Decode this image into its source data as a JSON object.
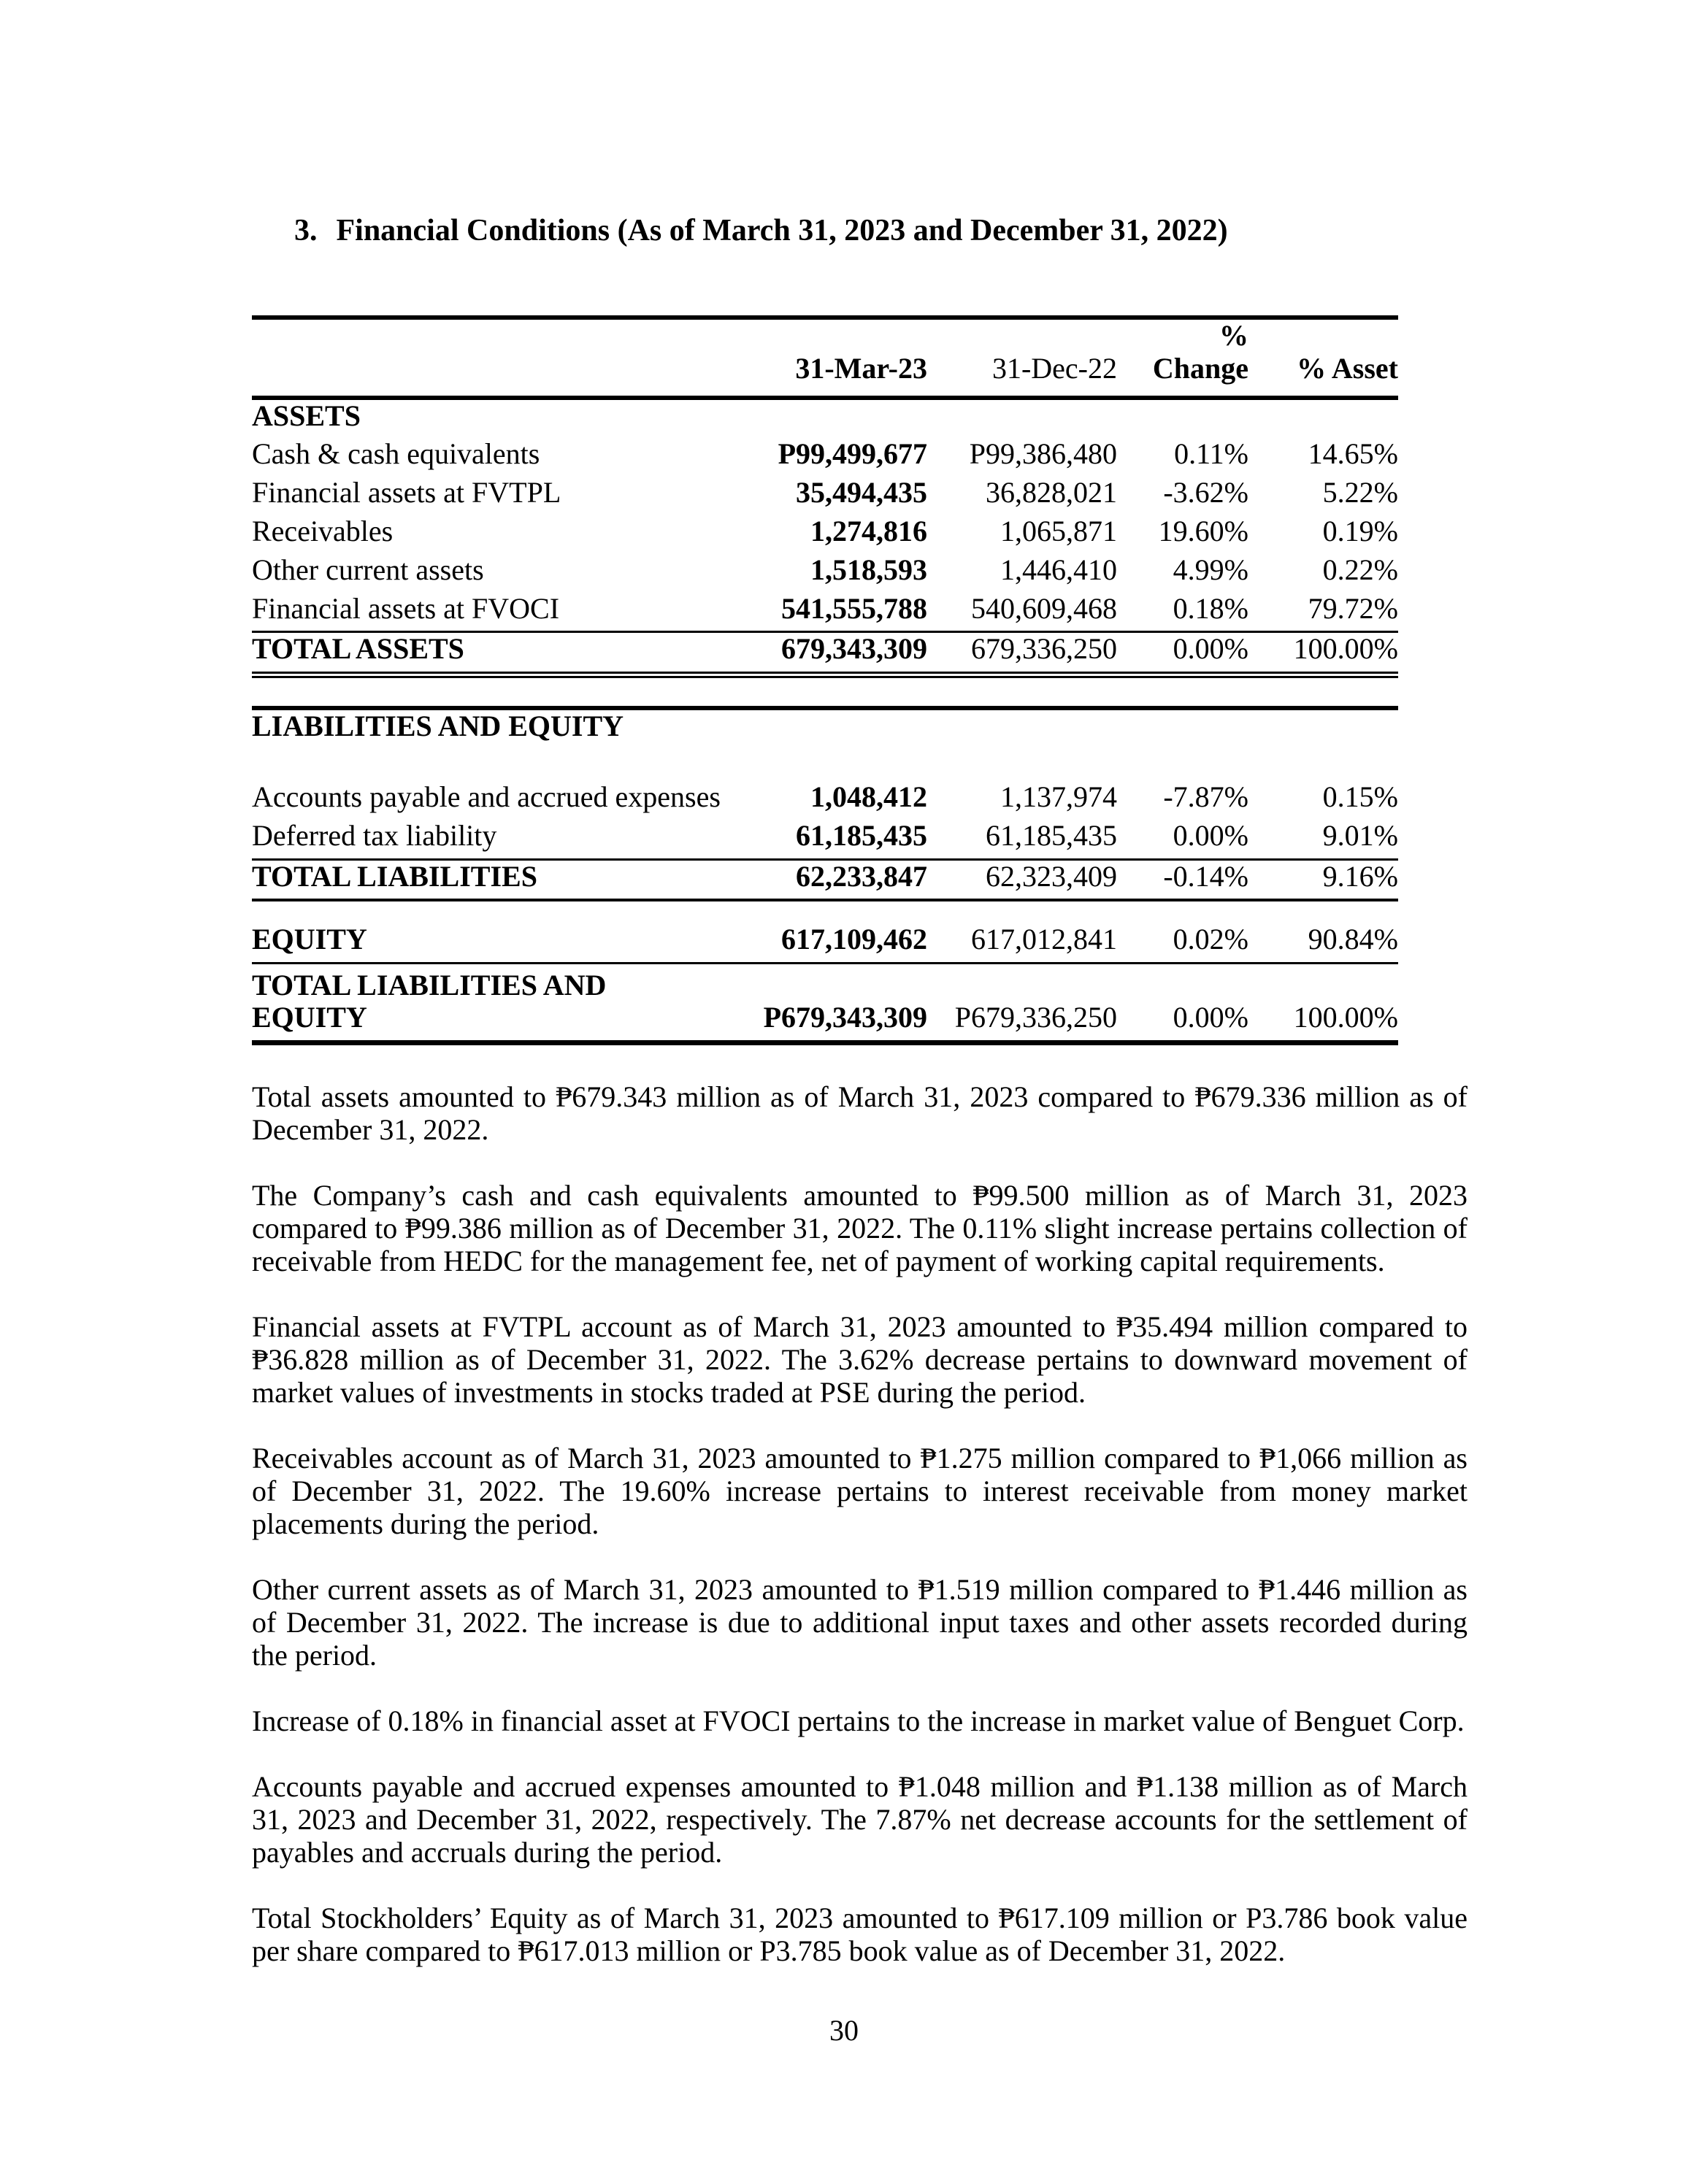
{
  "document": {
    "title_number": "3.",
    "title": "Financial Conditions (As of March 31, 2023 and December 31, 2022)",
    "page_number": "30"
  },
  "table": {
    "columns": [
      "31-Mar-23",
      "31-Dec-22",
      "% Change",
      "% Asset"
    ],
    "rows": [
      {
        "label": "ASSETS",
        "v1": "",
        "v2": "",
        "chg": "",
        "asset": ""
      },
      {
        "label": "Cash & cash equivalents",
        "v1": "P99,499,677",
        "v2": "P99,386,480",
        "chg": "0.11%",
        "asset": "14.65%"
      },
      {
        "label": "Financial assets at FVTPL",
        "v1": "35,494,435",
        "v2": "36,828,021",
        "chg": "-3.62%",
        "asset": "5.22%"
      },
      {
        "label": "Receivables",
        "v1": "1,274,816",
        "v2": "1,065,871",
        "chg": "19.60%",
        "asset": "0.19%"
      },
      {
        "label": "Other current assets",
        "v1": "1,518,593",
        "v2": "1,446,410",
        "chg": "4.99%",
        "asset": "0.22%"
      },
      {
        "label": "Financial assets at FVOCI",
        "v1": "541,555,788",
        "v2": "540,609,468",
        "chg": "0.18%",
        "asset": "79.72%"
      },
      {
        "label": "TOTAL ASSETS",
        "v1": "679,343,309",
        "v2": "679,336,250",
        "chg": "0.00%",
        "asset": "100.00%"
      },
      {
        "label": "LIABILITIES AND EQUITY",
        "v1": "",
        "v2": "",
        "chg": "",
        "asset": ""
      },
      {
        "label": "Accounts payable and accrued expenses",
        "v1": "1,048,412",
        "v2": "1,137,974",
        "chg": "-7.87%",
        "asset": "0.15%"
      },
      {
        "label": "Deferred tax liability",
        "v1": "61,185,435",
        "v2": "61,185,435",
        "chg": "0.00%",
        "asset": "9.01%"
      },
      {
        "label": "TOTAL LIABILITIES",
        "v1": "62,233,847",
        "v2": "62,323,409",
        "chg": "-0.14%",
        "asset": "9.16%"
      },
      {
        "label": "EQUITY",
        "v1": "617,109,462",
        "v2": "617,012,841",
        "chg": "0.02%",
        "asset": "90.84%"
      },
      {
        "label": "TOTAL LIABILITIES AND EQUITY",
        "v1": "P679,343,309",
        "v2": "P679,336,250",
        "chg": "0.00%",
        "asset": "100.00%"
      }
    ]
  },
  "paragraphs": [
    "Total assets amounted to ₱679.343 million as of March 31, 2023 compared to ₱679.336 million as of December 31, 2022.",
    "The Company’s cash and cash equivalents amounted to ₱99.500 million as of March 31, 2023 compared to ₱99.386 million as of December 31, 2022. The 0.11% slight increase pertains collection of receivable from HEDC for the management fee, net of payment of working capital requirements.",
    "Financial assets at FVTPL account as of March 31, 2023 amounted to ₱35.494 million compared to ₱36.828 million as of December 31, 2022.  The 3.62% decrease pertains to downward movement of market values of investments in stocks traded at PSE during the period.",
    "Receivables account as of March 31, 2023 amounted to ₱1.275 million compared to ₱1,066 million as of December 31, 2022. The 19.60% increase pertains to interest receivable from money market placements during the period.",
    "Other current assets as of March 31, 2023 amounted to ₱1.519 million compared to ₱1.446 million as of December 31, 2022.  The increase is due to additional input taxes and other assets recorded during the period.",
    "Increase of 0.18% in financial asset at FVOCI pertains to the increase in market value of Benguet Corp.",
    "Accounts payable and accrued expenses amounted to ₱1.048 million and ₱1.138 million as of March 31, 2023 and December 31, 2022, respectively. The 7.87% net decrease accounts for the settlement of payables and accruals during the period.",
    "Total Stockholders’ Equity as of March 31, 2023 amounted to ₱617.109 million or P3.786 book value per share compared to ₱617.013 million or P3.785 book value as of December 31, 2022."
  ]
}
